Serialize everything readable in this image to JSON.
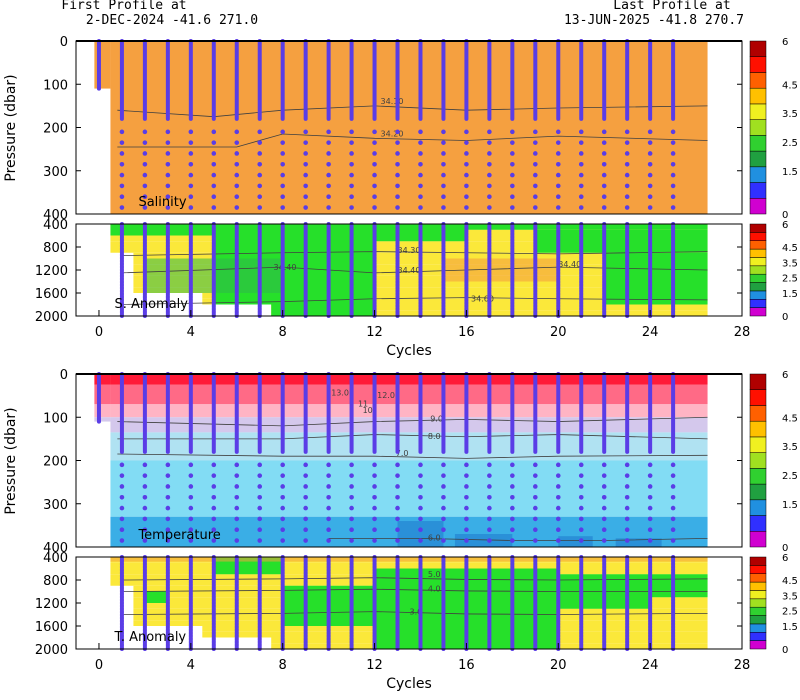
{
  "header": {
    "first_title": "First Profile at",
    "first_info": "2-DEC-2024    -41.6  271.0",
    "last_title": "Last Profile at",
    "last_info": "13-JUN-2025    -41.8  270.7"
  },
  "colors": {
    "salinity_bg": "#f5a040",
    "profile_dots": "#5a3de6",
    "contour": "#404040",
    "anomaly_yellow": "#fbe83a",
    "anomaly_green": "#26e02a",
    "anomaly_orange": "#f5a040",
    "anomaly_dkgreen": "#2fb84a",
    "temp_red": "#ff1a38",
    "temp_rose": "#ff6a86",
    "temp_pink": "#ffb4c4",
    "temp_lavender": "#d4c8ec",
    "temp_pale_blue": "#b0e2f2",
    "temp_cyan": "#82dcf4",
    "temp_blue": "#3aaee6",
    "temp_deep_blue": "#2a90d8"
  },
  "chart_data": [
    {
      "type": "heatmap",
      "panel": "salinity",
      "label": "Salinity",
      "ylabel": "Pressure (dbar)",
      "xlim": [
        -1,
        28
      ],
      "ylim": [
        400,
        0
      ],
      "yticks": [
        0,
        100,
        200,
        300,
        400
      ],
      "contours": [
        {
          "label": "34.10",
          "level": 34.1,
          "x": [
            0.8,
            5,
            8,
            12,
            16,
            20,
            26.5
          ],
          "y": [
            160,
            175,
            160,
            150,
            160,
            155,
            150
          ]
        },
        {
          "label": "34.20",
          "level": 34.2,
          "x": [
            0.8,
            6,
            8,
            12,
            16,
            20,
            26.5
          ],
          "y": [
            245,
            245,
            215,
            225,
            230,
            220,
            230
          ]
        }
      ]
    },
    {
      "type": "heatmap",
      "panel": "salinity_anomaly",
      "label": "S. Anomaly",
      "xlim": [
        -1,
        28
      ],
      "ylim": [
        2000,
        400
      ],
      "yticks": [
        400,
        800,
        1200,
        1600,
        2000
      ],
      "contours": [
        {
          "label": "34.30",
          "level": 34.3,
          "x": [
            1,
            8,
            12,
            16,
            20,
            26.5
          ],
          "y": [
            950,
            900,
            880,
            900,
            920,
            880
          ]
        },
        {
          "label": "34.40",
          "level": 34.4,
          "x": [
            1,
            8,
            12,
            16,
            20,
            26.5
          ],
          "y": [
            1250,
            1150,
            1250,
            1200,
            1150,
            1200
          ]
        },
        {
          "label": "34.60",
          "level": 34.6,
          "x": [
            1,
            8,
            12,
            16,
            20,
            26.5
          ],
          "y": [
            1800,
            1750,
            1700,
            1680,
            1700,
            1720
          ]
        }
      ],
      "contour_labels": [
        {
          "text": "34.30",
          "x": 13.5,
          "y": 900
        },
        {
          "text": "34.40",
          "x": 8.1,
          "y": 1200
        },
        {
          "text": "34.40",
          "x": 13.5,
          "y": 1250
        },
        {
          "text": "34.40",
          "x": 20.5,
          "y": 1150
        },
        {
          "text": "34.60",
          "x": 16.7,
          "y": 1750
        }
      ]
    },
    {
      "type": "heatmap",
      "panel": "temperature",
      "label": "Temperature",
      "ylabel": "Pressure (dbar)",
      "xlim": [
        -1,
        28
      ],
      "ylim": [
        400,
        0
      ],
      "yticks": [
        0,
        100,
        200,
        300,
        400
      ],
      "contours": [
        {
          "label": "9.0",
          "level": 9.0,
          "x": [
            0.8,
            8,
            12,
            16,
            20,
            26.5
          ],
          "y": [
            110,
            120,
            110,
            105,
            110,
            100
          ]
        },
        {
          "label": "8.0",
          "level": 8.0,
          "x": [
            0.8,
            8,
            12,
            16,
            20,
            26.5
          ],
          "y": [
            150,
            150,
            140,
            145,
            140,
            150
          ]
        },
        {
          "label": "7.0",
          "level": 7.0,
          "x": [
            0.8,
            8,
            12,
            16,
            20,
            26.5
          ],
          "y": [
            185,
            190,
            190,
            195,
            190,
            188
          ]
        },
        {
          "label": "6.0",
          "level": 6.0,
          "x": [
            10,
            14,
            18,
            22,
            26.5
          ],
          "y": [
            380,
            380,
            385,
            385,
            380
          ]
        }
      ],
      "contour_labels": [
        {
          "text": "13.0",
          "x": 10.5,
          "y": 50
        },
        {
          "text": "12.0",
          "x": 12.5,
          "y": 55
        },
        {
          "text": "11",
          "x": 11.5,
          "y": 75
        },
        {
          "text": "10",
          "x": 11.7,
          "y": 90
        },
        {
          "text": "9.0",
          "x": 14.7,
          "y": 110
        },
        {
          "text": "8.0",
          "x": 14.6,
          "y": 150
        },
        {
          "text": "7.0",
          "x": 13.2,
          "y": 190
        },
        {
          "text": "6.0",
          "x": 14.6,
          "y": 385
        }
      ]
    },
    {
      "type": "heatmap",
      "panel": "temperature_anomaly",
      "label": "T. Anomaly",
      "xlabel": "Cycles",
      "xlim": [
        -1,
        28
      ],
      "ylim": [
        2000,
        400
      ],
      "yticks": [
        400,
        800,
        1200,
        1600,
        2000
      ],
      "xticks": [
        0,
        4,
        8,
        12,
        16,
        20,
        24,
        28
      ],
      "contours": [
        {
          "label": "5.0",
          "level": 5.0,
          "x": [
            1,
            8,
            12,
            16,
            20,
            26.5
          ],
          "y": [
            800,
            780,
            760,
            790,
            800,
            780
          ]
        },
        {
          "label": "4.0",
          "level": 4.0,
          "x": [
            1,
            8,
            12,
            16,
            20,
            26.5
          ],
          "y": [
            1000,
            980,
            960,
            990,
            1000,
            1000
          ]
        },
        {
          "label": "3.0",
          "level": 3.0,
          "x": [
            1,
            8,
            12,
            16,
            20,
            26.5
          ],
          "y": [
            1400,
            1380,
            1350,
            1390,
            1400,
            1380
          ]
        }
      ],
      "contour_labels": [
        {
          "text": "5.0",
          "x": 14.6,
          "y": 750
        },
        {
          "text": "4.0",
          "x": 14.6,
          "y": 1000
        },
        {
          "text": "3.0",
          "x": 13.8,
          "y": 1400
        }
      ]
    },
    {
      "type": "colorbar",
      "ticks": [
        "6",
        "4.5",
        "3.5",
        "2.5",
        "1.5",
        "0"
      ],
      "tick_values": [
        6,
        4.5,
        3.5,
        2.5,
        1.5,
        0
      ],
      "colors": [
        "#d000d0",
        "#3030ff",
        "#2090e0",
        "#20a040",
        "#30d030",
        "#a0e020",
        "#f0f020",
        "#ffc000",
        "#ff6000",
        "#ff1000",
        "#b00000"
      ]
    }
  ],
  "profiles": {
    "cycles": [
      0,
      1,
      2,
      3,
      4,
      5,
      6,
      7,
      8,
      9,
      10,
      11,
      12,
      13,
      14,
      15,
      16,
      17,
      18,
      19,
      20,
      21,
      22,
      23,
      24,
      25
    ],
    "first_cycle_depth": 110
  }
}
